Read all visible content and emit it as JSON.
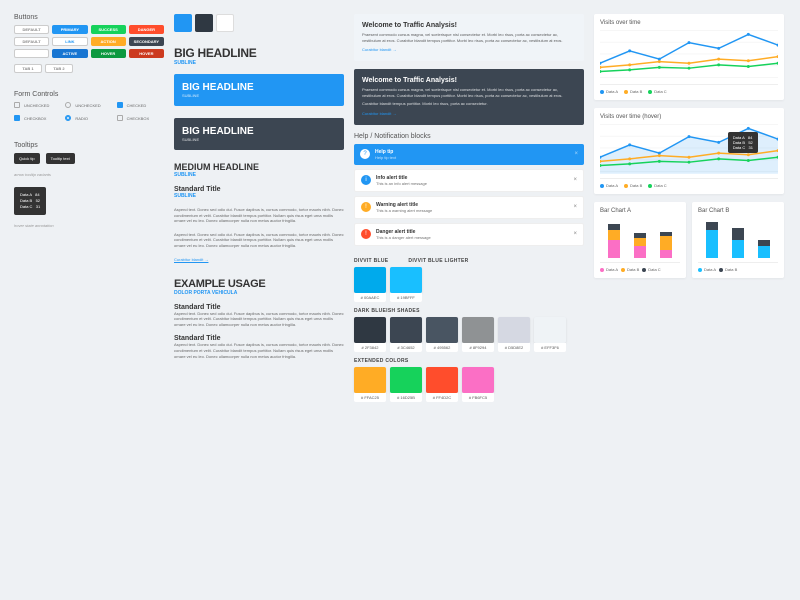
{
  "sections": {
    "buttons": "Buttons",
    "forms": "Form Controls",
    "tooltips": "Tooltips",
    "help": "Help / Notification blocks"
  },
  "colors": {
    "primary": "#00AAEC",
    "primary_light": "#19BFFF",
    "dark": "#2F3842",
    "grey": "#3C4652",
    "success": "#16D25B",
    "danger": "#FF4D2C",
    "warning": "#FFAC25",
    "info": "#2196f3",
    "pink": "#FB6FC5",
    "white": "#FFFFFF",
    "light": "#f0f4f8"
  },
  "btn_variants": [
    {
      "label": "DEFAULT",
      "bg": "#fff",
      "color": "#888",
      "out": true
    },
    {
      "label": "PRIMARY",
      "bg": "#2196f3"
    },
    {
      "label": "SUCCESS",
      "bg": "#16D25B"
    },
    {
      "label": "DANGER",
      "bg": "#FF4D2C"
    },
    {
      "label": "DEFAULT",
      "bg": "#fff",
      "color": "#888",
      "out": true
    },
    {
      "label": "LINK",
      "bg": "#fff",
      "color": "#2196f3",
      "out": true
    },
    {
      "label": "ACTION",
      "bg": "#FFAC25"
    },
    {
      "label": "SECONDARY",
      "bg": "#3C4652"
    },
    {
      "label": "",
      "bg": "#fff",
      "out": true
    },
    {
      "label": "ACTIVE",
      "bg": "#1976d2"
    },
    {
      "label": "HOVER",
      "bg": "#0d9940"
    },
    {
      "label": "HOVER",
      "bg": "#cc3a1f"
    }
  ],
  "typography": {
    "top_swatches": [
      "#2196f3",
      "#2F3842",
      "#ffffff"
    ],
    "big_headline": "BIG HEADLINE",
    "subline": "SUBLINE",
    "medium_headline": "MEDIUM HEADLINE",
    "standard_title": "Standard Title",
    "body": "Aspend text. Donec sed odio dui. Fusce dapibus is, cursus commodo, tortor mauris nibh. Donec condimentum et velit. Curabitur blandit tempus porttitor. Nullam quis risus eget urna mollis ornare vel eu leo. Donec ullamcorper nulla non metus auctor fringilla.",
    "link_text": "Curabitur blandit →",
    "example_usage": "EXAMPLE USAGE",
    "example_sub": "DOLOR PORTA VEHICULA"
  },
  "welcome": {
    "title": "Welcome to Traffic Analysis!",
    "body": "Praesent commodo cursus magna, vel scelerisque nisl consectetur et. Morbi leo risus, porta ac consectetur ac, vestibulum at eros. Curabitur blandit tempus porttitor. Morbi leo risus, porta ac consectetur ac, vestibulum at eros.",
    "body2": "Curabitur blandit tempus porttitor. Morbi leo risus, porta ac consectetur.",
    "link": "Curabitur blandit →"
  },
  "notifications": [
    {
      "type": "tip",
      "title": "Help tip",
      "body": "Help tip text",
      "icon_bg": "#fff",
      "icon_color": "#2196f3",
      "icon": "?"
    },
    {
      "type": "info",
      "title": "Info alert title",
      "body": "This is an info alert message",
      "icon_bg": "#2196f3",
      "icon_color": "#fff",
      "icon": "i"
    },
    {
      "type": "warning",
      "title": "Warning alert title",
      "body": "This is a warning alert message",
      "icon_bg": "#FFAC25",
      "icon_color": "#fff",
      "icon": "!"
    },
    {
      "type": "danger",
      "title": "Danger alert title",
      "body": "This is a danger alert message",
      "icon_bg": "#FF4D2C",
      "icon_color": "#fff",
      "icon": "!"
    }
  ],
  "palette_groups": [
    {
      "label": "DIVVIT BLUE",
      "items": [
        {
          "hex": "#00AAEC"
        },
        {
          "hex": "#19BFFF"
        }
      ],
      "label2": "DIVVIT BLUE LIGHTER"
    },
    {
      "label": "DARK BLUEISH SHADES",
      "items": [
        {
          "hex": "#2F3842"
        },
        {
          "hex": "#3C4652"
        },
        {
          "hex": "#495562"
        },
        {
          "hex": "#8F9294"
        },
        {
          "hex": "#D5D8E2"
        },
        {
          "hex": "#EFF3F6"
        }
      ]
    },
    {
      "label": "EXTENDED COLORS",
      "items": [
        {
          "hex": "#FFAC25"
        },
        {
          "hex": "#16D25B"
        },
        {
          "hex": "#FF4D2C"
        },
        {
          "hex": "#FB6FC5"
        }
      ]
    }
  ],
  "charts": {
    "line1_title": "Visits over time",
    "line2_title": "Visits over time (hover)",
    "bar_a_title": "Bar Chart A",
    "bar_b_title": "Bar Chart B",
    "x_labels": [
      "Nov 24",
      "Nov 25",
      "Nov 26",
      "Nov 27",
      "Nov 28",
      "Nov 29",
      "Nov 30"
    ],
    "series": [
      {
        "name": "Data A",
        "color": "#2196f3",
        "points": [
          20,
          35,
          25,
          45,
          38,
          55,
          42
        ]
      },
      {
        "name": "Data B",
        "color": "#FFAC25",
        "points": [
          15,
          18,
          22,
          20,
          25,
          23,
          28
        ]
      },
      {
        "name": "Data C",
        "color": "#16D25B",
        "points": [
          10,
          12,
          15,
          14,
          18,
          16,
          20
        ]
      }
    ],
    "bar_a": [
      {
        "segs": [
          {
            "h": 18,
            "c": "#FB6FC5"
          },
          {
            "h": 10,
            "c": "#FFAC25"
          },
          {
            "h": 6,
            "c": "#3C4652"
          }
        ]
      },
      {
        "segs": [
          {
            "h": 12,
            "c": "#FB6FC5"
          },
          {
            "h": 8,
            "c": "#FFAC25"
          },
          {
            "h": 5,
            "c": "#3C4652"
          }
        ]
      },
      {
        "segs": [
          {
            "h": 8,
            "c": "#FB6FC5"
          },
          {
            "h": 14,
            "c": "#FFAC25"
          },
          {
            "h": 4,
            "c": "#3C4652"
          }
        ]
      }
    ],
    "bar_b": [
      {
        "segs": [
          {
            "h": 28,
            "c": "#19BFFF"
          },
          {
            "h": 8,
            "c": "#3C4652"
          }
        ]
      },
      {
        "segs": [
          {
            "h": 18,
            "c": "#19BFFF"
          },
          {
            "h": 12,
            "c": "#3C4652"
          }
        ]
      },
      {
        "segs": [
          {
            "h": 12,
            "c": "#19BFFF"
          },
          {
            "h": 6,
            "c": "#3C4652"
          }
        ]
      }
    ],
    "bar_legend": [
      {
        "name": "Data A",
        "color": "#FB6FC5"
      },
      {
        "name": "Data B",
        "color": "#FFAC25"
      },
      {
        "name": "Data C",
        "color": "#3C4652"
      }
    ],
    "bar_legend_b": [
      {
        "name": "Data A",
        "color": "#19BFFF"
      },
      {
        "name": "Data B",
        "color": "#3C4652"
      }
    ],
    "tooltip_value": "84%"
  },
  "form_labels": {
    "checkbox": "CHECKBOX",
    "radio": "RADIO",
    "checked": "CHECKED",
    "unchecked": "UNCHECKED"
  },
  "tooltip_samples": [
    "Quick tip",
    "Tooltip text"
  ]
}
